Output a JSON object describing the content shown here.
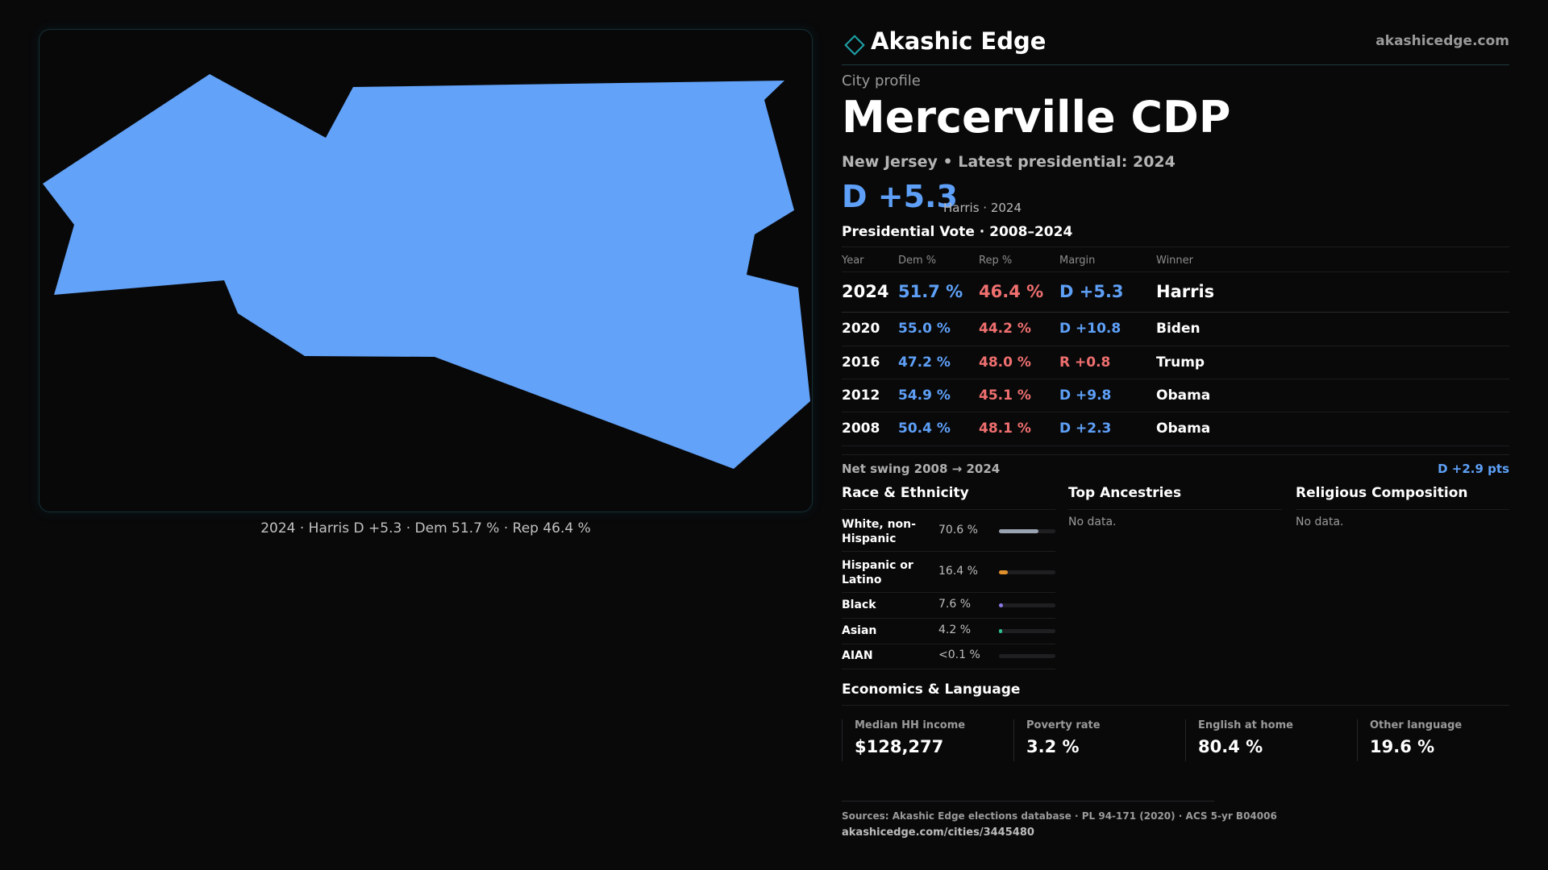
{
  "colors": {
    "dem": "#5ea0f7",
    "rep": "#ef6f6f",
    "map_fill": "#62a2f8"
  },
  "map": {
    "caption": "2024 · Harris D +5.3 · Dem 51.7 % · Rep 46.4 %"
  },
  "header": {
    "brand": "Akashic Edge",
    "brand_icon": "diamond-icon",
    "url": "akashicedge.com"
  },
  "profile": {
    "eyebrow": "City profile",
    "title": "Mercerville CDP",
    "subtitle": "New Jersey • Latest presidential: 2024",
    "headline_margin": "D +5.3",
    "headline_note": "Harris · 2024"
  },
  "vote": {
    "title": "Presidential Vote · 2008–2024",
    "columns": [
      "Year",
      "Dem %",
      "Rep %",
      "Margin",
      "Winner"
    ],
    "rows": [
      {
        "year": "2024",
        "dem": "51.7 %",
        "rep": "46.4 %",
        "margin": "D +5.3",
        "party": "D",
        "winner": "Harris"
      },
      {
        "year": "2020",
        "dem": "55.0 %",
        "rep": "44.2 %",
        "margin": "D +10.8",
        "party": "D",
        "winner": "Biden"
      },
      {
        "year": "2016",
        "dem": "47.2 %",
        "rep": "48.0 %",
        "margin": "R +0.8",
        "party": "R",
        "winner": "Trump"
      },
      {
        "year": "2012",
        "dem": "54.9 %",
        "rep": "45.1 %",
        "margin": "D +9.8",
        "party": "D",
        "winner": "Obama"
      },
      {
        "year": "2008",
        "dem": "50.4 %",
        "rep": "48.1 %",
        "margin": "D +2.3",
        "party": "D",
        "winner": "Obama"
      }
    ],
    "swing_label": "Net swing 2008 → 2024",
    "swing_value": "D +2.9 pts"
  },
  "race": {
    "title": "Race & Ethnicity",
    "items": [
      {
        "label": "White, non-Hispanic",
        "pct": "70.6 %",
        "fraction": 0.706,
        "color": "#9aa3b2"
      },
      {
        "label": "Hispanic or Latino",
        "pct": "16.4 %",
        "fraction": 0.164,
        "color": "#e0912b"
      },
      {
        "label": "Black",
        "pct": "7.6 %",
        "fraction": 0.076,
        "color": "#8a7be6"
      },
      {
        "label": "Asian",
        "pct": "4.2 %",
        "fraction": 0.042,
        "color": "#2fbf93"
      },
      {
        "label": "AIAN",
        "pct": "<0.1 %",
        "fraction": 0.0,
        "color": "#c06ad6"
      }
    ]
  },
  "ancestries": {
    "title": "Top Ancestries",
    "empty": "No data."
  },
  "religion": {
    "title": "Religious Composition",
    "empty": "No data."
  },
  "economics": {
    "title": "Economics & Language",
    "metrics": [
      {
        "label": "Median HH income",
        "value": "$128,277"
      },
      {
        "label": "Poverty rate",
        "value": "3.2 %"
      },
      {
        "label": "English at home",
        "value": "80.4 %"
      },
      {
        "label": "Other language",
        "value": "19.6 %"
      }
    ]
  },
  "footer": {
    "sources": "Sources: Akashic Edge elections database · PL 94-171 (2020) · ACS 5-yr B04006",
    "url": "akashicedge.com/cities/3445480"
  }
}
